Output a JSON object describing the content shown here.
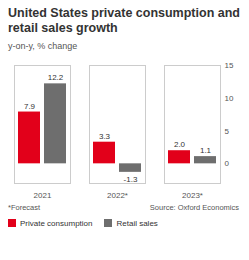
{
  "chart_data": {
    "type": "bar",
    "title": "United States private consumption and retail sales growth",
    "subtitle": "y-on-y, % change",
    "categories": [
      "2021",
      "2022*",
      "2023*"
    ],
    "series": [
      {
        "name": "Private consumption",
        "color": "#e2001a",
        "values": [
          7.9,
          3.3,
          2.0
        ],
        "value_labels": [
          "7.9",
          "3.3",
          "2.0"
        ]
      },
      {
        "name": "Retail sales",
        "color": "#6e6e6e",
        "values": [
          12.2,
          -1.3,
          1.1
        ],
        "value_labels": [
          "12.2",
          "-1.3",
          "1.1"
        ]
      }
    ],
    "ylim": [
      -3,
      15
    ],
    "yticks": [
      0,
      5,
      10,
      15
    ],
    "grid": false,
    "data_labels": true,
    "legend": "bottom",
    "note": "*Forecast",
    "source": "Source: Oxford Economics"
  }
}
